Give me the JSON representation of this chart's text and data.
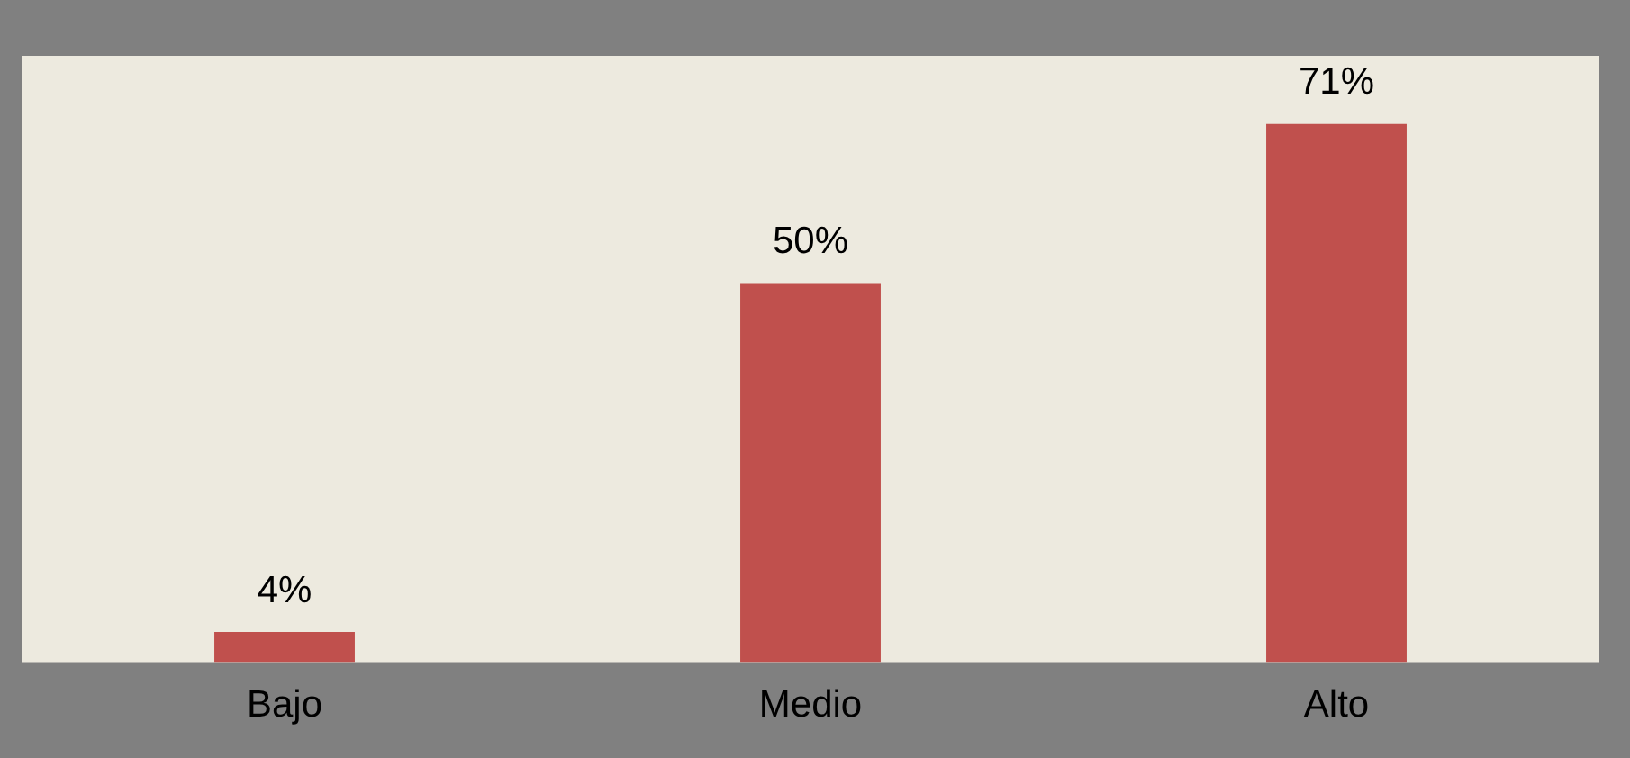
{
  "chart_data": {
    "type": "bar",
    "categories": [
      "Bajo",
      "Medio",
      "Alto"
    ],
    "values": [
      4,
      50,
      71
    ],
    "color": "#c0504d",
    "value_labels": [
      "4%",
      "50%",
      "71%"
    ],
    "ylim": [
      0,
      80
    ],
    "tick_labels": "x",
    "grid": false,
    "legend": false
  }
}
